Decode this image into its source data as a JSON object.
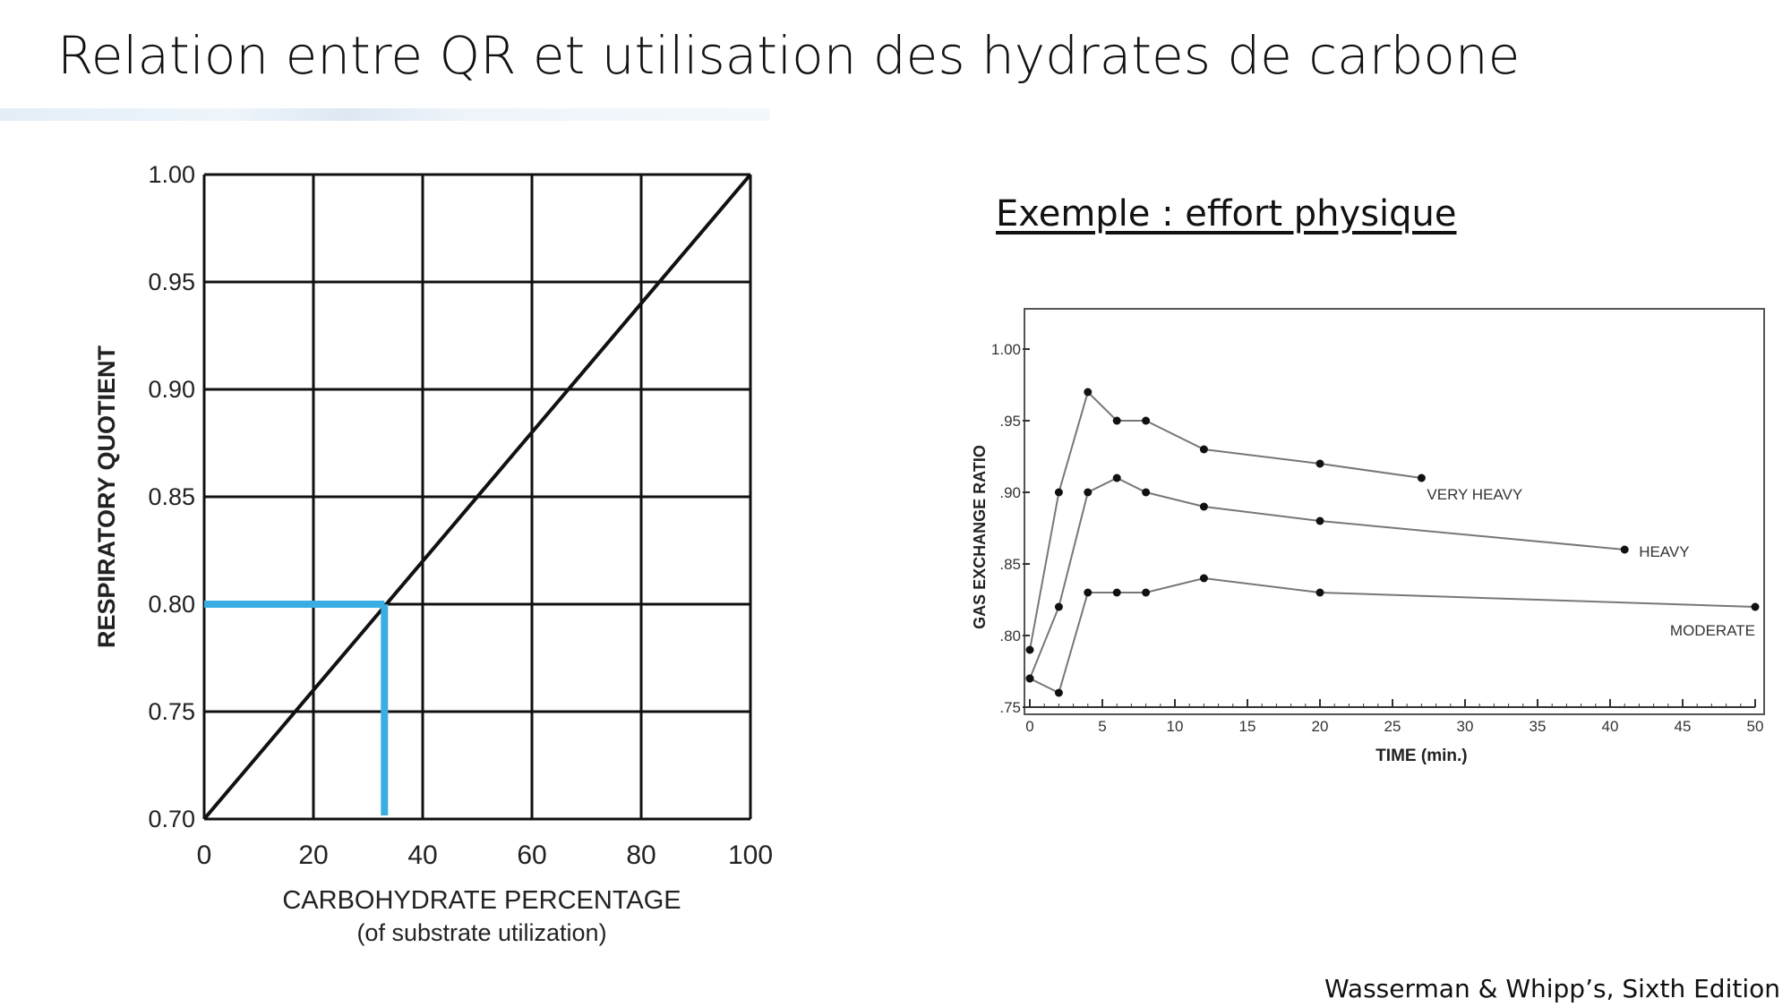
{
  "slide": {
    "title": "Relation entre QR et utilisation des hydrates de carbone",
    "subtitle": "Exemple : effort physique",
    "source": "Wasserman & Whipp’s, Sixth Edition"
  },
  "chart_data": [
    {
      "type": "line",
      "xlabel": "CARBOHYDRATE PERCENTAGE",
      "xlabel_sub": "(of substrate utilization)",
      "ylabel": "RESPIRATORY QUOTIENT",
      "xlim": [
        0,
        100
      ],
      "ylim": [
        0.7,
        1.0
      ],
      "x_ticks": [
        "0",
        "20",
        "40",
        "60",
        "80",
        "100"
      ],
      "y_ticks": [
        "0.70",
        "0.75",
        "0.80",
        "0.85",
        "0.90",
        "0.95",
        "1.00"
      ],
      "grid": true,
      "series": [
        {
          "x": [
            0,
            100
          ],
          "y": [
            0.7,
            1.0
          ],
          "color": "#111111"
        }
      ],
      "annotation": {
        "x": 33,
        "y": 0.8,
        "color": "#3aade2"
      }
    },
    {
      "type": "line",
      "xlabel": "TIME (min.)",
      "ylabel": "GAS EXCHANGE RATIO",
      "xlim": [
        0,
        50
      ],
      "ylim": [
        0.75,
        1.0
      ],
      "x_ticks": [
        "0",
        "5",
        "10",
        "15",
        "20",
        "25",
        "30",
        "35",
        "40",
        "45",
        "50"
      ],
      "y_ticks": [
        ".75",
        ".80",
        ".85",
        ".90",
        ".95",
        "1.00"
      ],
      "grid": false,
      "series": [
        {
          "name": "VERY HEAVY",
          "x": [
            0,
            2,
            4,
            6,
            8,
            12,
            20,
            27
          ],
          "y": [
            0.79,
            0.9,
            0.97,
            0.95,
            0.95,
            0.93,
            0.92,
            0.91
          ]
        },
        {
          "name": "HEAVY",
          "x": [
            0,
            2,
            4,
            6,
            8,
            12,
            20,
            41
          ],
          "y": [
            0.77,
            0.82,
            0.9,
            0.91,
            0.9,
            0.89,
            0.88,
            0.86
          ]
        },
        {
          "name": "MODERATE",
          "x": [
            0,
            2,
            4,
            6,
            8,
            12,
            20,
            50
          ],
          "y": [
            0.77,
            0.76,
            0.83,
            0.83,
            0.83,
            0.84,
            0.83,
            0.82
          ]
        }
      ]
    }
  ]
}
